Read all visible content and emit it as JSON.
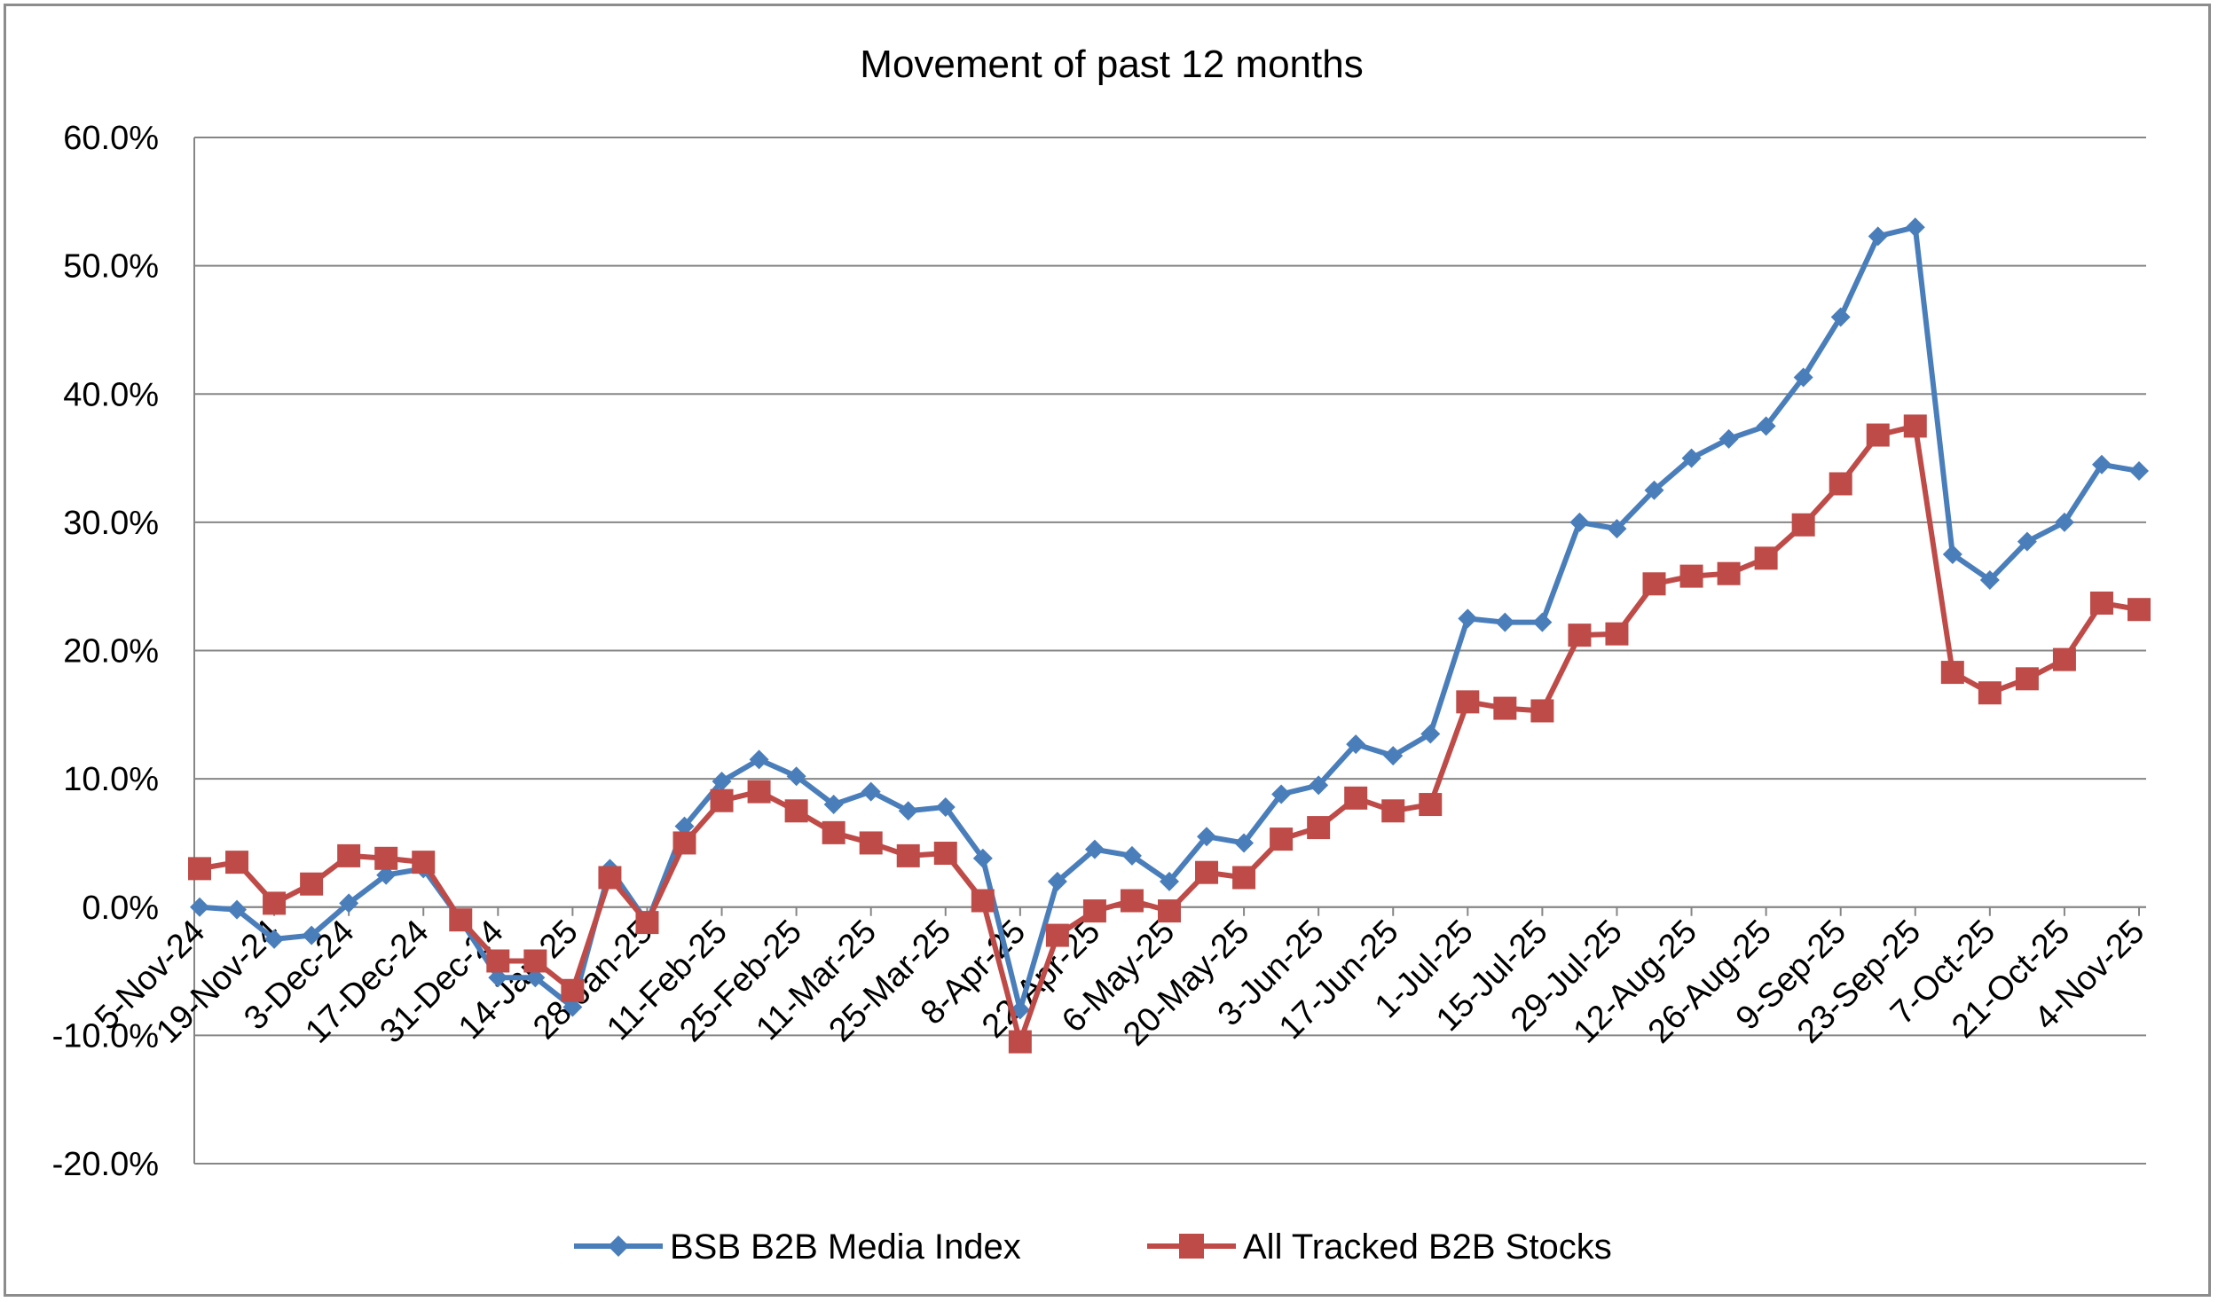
{
  "chart_data": {
    "type": "line",
    "title": "Movement of past 12 months",
    "xlabel": "",
    "ylabel": "",
    "ylim": [
      -20,
      60
    ],
    "y_ticks": [
      "60.0%",
      "50.0%",
      "40.0%",
      "30.0%",
      "20.0%",
      "10.0%",
      "0.0%",
      "-10.0%",
      "-20.0%"
    ],
    "y_tick_values": [
      60,
      50,
      40,
      30,
      20,
      10,
      0,
      -10,
      -20
    ],
    "x_tick_labels": [
      "5-Nov-24",
      "19-Nov-24",
      "3-Dec-24",
      "17-Dec-24",
      "31-Dec-24",
      "14-Jan-25",
      "28-Jan-25",
      "11-Feb-25",
      "25-Feb-25",
      "11-Mar-25",
      "25-Mar-25",
      "8-Apr-25",
      "22-Apr-25",
      "6-May-25",
      "20-May-25",
      "3-Jun-25",
      "17-Jun-25",
      "1-Jul-25",
      "15-Jul-25",
      "29-Jul-25",
      "12-Aug-25",
      "26-Aug-25",
      "9-Sep-25",
      "23-Sep-25",
      "7-Oct-25",
      "21-Oct-25",
      "4-Nov-25"
    ],
    "grid": true,
    "legend_position": "bottom",
    "series": [
      {
        "name": "BSB B2B Media Index",
        "color": "#4a7ebb",
        "marker": "diamond",
        "values": [
          0.0,
          -0.2,
          -2.5,
          -2.2,
          0.3,
          2.5,
          3.0,
          -1.0,
          -5.5,
          -5.5,
          -7.8,
          3.0,
          -1.2,
          6.3,
          9.8,
          11.5,
          10.2,
          8.0,
          9.0,
          7.5,
          7.8,
          3.8,
          -8.0,
          2.0,
          4.5,
          4.0,
          2.0,
          5.5,
          5.0,
          8.8,
          9.5,
          12.7,
          11.8,
          13.5,
          22.5,
          22.2,
          22.2,
          30.0,
          29.5,
          32.5,
          35.0,
          36.5,
          37.5,
          41.3,
          46.0,
          52.3,
          53.0,
          27.5,
          25.5,
          28.5,
          30.0,
          34.5,
          34.0
        ]
      },
      {
        "name": "All Tracked B2B Stocks",
        "color": "#be4b48",
        "marker": "square",
        "values": [
          3.0,
          3.5,
          0.3,
          1.8,
          4.0,
          3.8,
          3.5,
          -1.0,
          -4.2,
          -4.2,
          -6.5,
          2.3,
          -1.2,
          5.0,
          8.3,
          9.0,
          7.5,
          5.8,
          5.0,
          4.0,
          4.2,
          0.5,
          -10.5,
          -2.2,
          -0.3,
          0.5,
          -0.3,
          2.7,
          2.3,
          5.3,
          6.2,
          8.5,
          7.5,
          8.0,
          16.0,
          15.5,
          15.3,
          21.2,
          21.3,
          25.2,
          25.8,
          26.0,
          27.2,
          29.8,
          33.0,
          36.8,
          37.5,
          18.3,
          16.7,
          17.8,
          19.3,
          23.7,
          23.2
        ]
      }
    ]
  }
}
